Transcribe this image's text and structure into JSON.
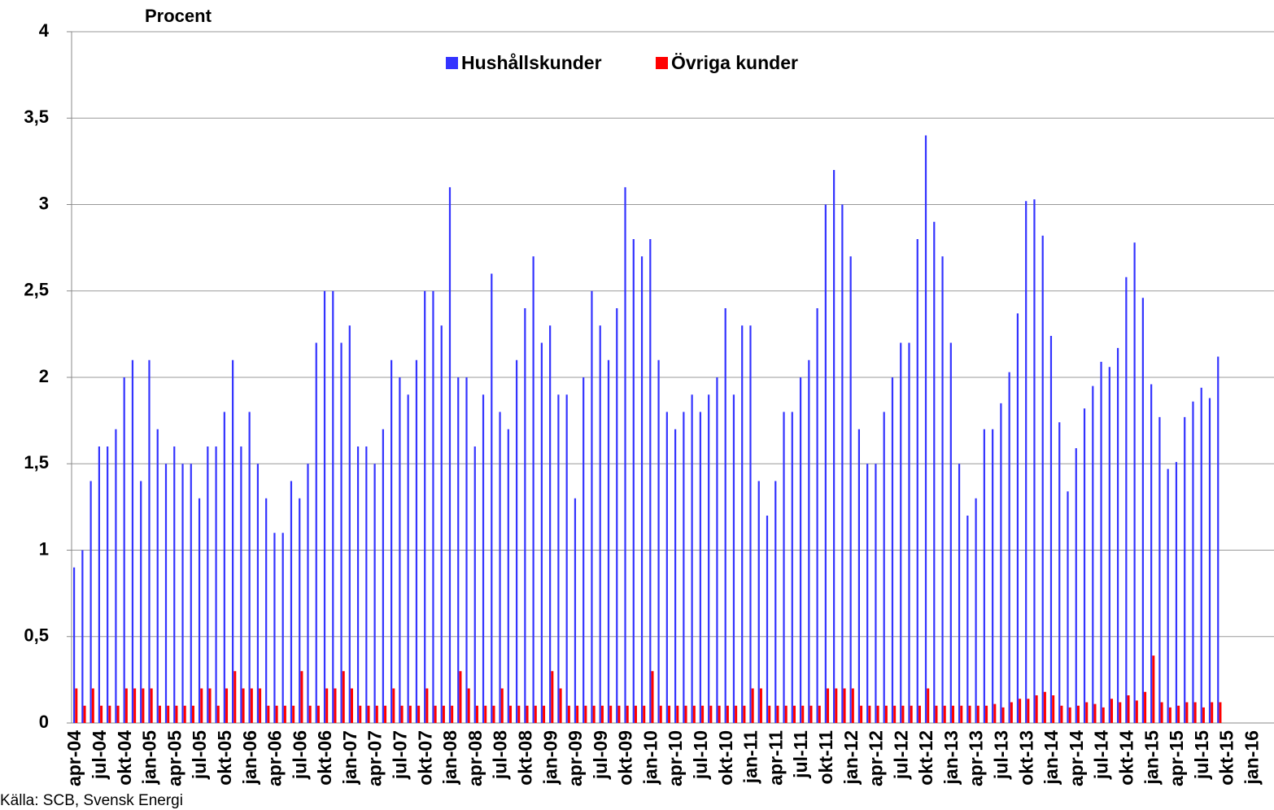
{
  "chart_data": {
    "type": "bar",
    "y_label": "Procent",
    "source": "Källa: SCB, Svensk Energi",
    "categories": [
      "apr-04",
      null,
      null,
      "jul-04",
      null,
      null,
      "okt-04",
      null,
      null,
      "jan-05",
      null,
      null,
      "apr-05",
      null,
      null,
      "jul-05",
      null,
      null,
      "okt-05",
      null,
      null,
      "jan-06",
      null,
      null,
      "apr-06",
      null,
      null,
      "jul-06",
      null,
      null,
      "okt-06",
      null,
      null,
      "jan-07",
      null,
      null,
      "apr-07",
      null,
      null,
      "jul-07",
      null,
      null,
      "okt-07",
      null,
      null,
      "jan-08",
      null,
      null,
      "apr-08",
      null,
      null,
      "jul-08",
      null,
      null,
      "okt-08",
      null,
      null,
      "jan-09",
      null,
      null,
      "apr-09",
      null,
      null,
      "jul-09",
      null,
      null,
      "okt-09",
      null,
      null,
      "jan-10",
      null,
      null,
      "apr-10",
      null,
      null,
      "jul-10",
      null,
      null,
      "okt-10",
      null,
      null,
      "jan-11",
      null,
      null,
      "apr-11",
      null,
      null,
      "jul-11",
      null,
      null,
      "okt-11",
      null,
      null,
      "jan-12",
      null,
      null,
      "apr-12",
      null,
      null,
      "jul-12",
      null,
      null,
      "okt-12",
      null,
      null,
      "jan-13",
      null,
      null,
      "apr-13",
      null,
      null,
      "jul-13",
      null,
      null,
      "okt-13",
      null,
      null,
      "jan-14",
      null,
      null,
      "apr-14",
      null,
      null,
      "jul-14",
      null,
      null,
      "okt-14",
      null,
      null,
      "jan-15",
      null,
      null,
      "apr-15",
      null,
      null,
      "jul-15",
      null,
      null,
      "okt-15",
      null,
      null,
      "jan-16",
      null,
      null
    ],
    "series": [
      {
        "name": "Hushållskunder",
        "color": "#3333ff",
        "values": [
          0.9,
          1.0,
          1.4,
          1.6,
          1.6,
          1.7,
          2.0,
          2.1,
          1.4,
          2.1,
          1.7,
          1.5,
          1.6,
          1.5,
          1.5,
          1.3,
          1.6,
          1.6,
          1.8,
          2.1,
          1.6,
          1.8,
          1.5,
          1.3,
          1.1,
          1.1,
          1.4,
          1.3,
          1.5,
          2.2,
          2.5,
          2.5,
          2.2,
          2.3,
          1.6,
          1.6,
          1.5,
          1.7,
          2.1,
          2.0,
          1.9,
          2.1,
          2.5,
          2.5,
          2.3,
          3.1,
          2.0,
          2.0,
          1.6,
          1.9,
          2.6,
          1.8,
          1.7,
          2.1,
          2.4,
          2.7,
          2.2,
          2.3,
          1.9,
          1.9,
          1.3,
          2.0,
          2.5,
          2.3,
          2.1,
          2.4,
          3.1,
          2.8,
          2.7,
          2.8,
          2.1,
          1.8,
          1.7,
          1.8,
          1.9,
          1.8,
          1.9,
          2.0,
          2.4,
          1.9,
          2.3,
          2.3,
          1.4,
          1.2,
          1.4,
          1.8,
          1.8,
          2.0,
          2.1,
          2.4,
          3.0,
          3.2,
          3.0,
          2.7,
          1.7,
          1.5,
          1.5,
          1.8,
          2.0,
          2.2,
          2.2,
          2.8,
          3.4,
          2.9,
          2.7,
          2.2,
          1.5,
          1.2,
          1.3,
          1.7,
          1.7,
          1.85,
          2.03,
          2.37,
          3.02,
          3.03,
          2.82,
          2.24,
          1.74,
          1.34,
          1.59,
          1.82,
          1.95,
          2.09,
          2.06,
          2.17,
          2.58,
          2.78,
          2.46,
          1.96,
          1.77,
          1.47,
          1.51,
          1.77,
          1.86,
          1.94,
          1.88,
          2.12,
          null,
          null,
          null,
          null,
          null,
          null
        ]
      },
      {
        "name": "Övriga kunder",
        "color": "#ff0000",
        "values": [
          0.2,
          0.1,
          0.2,
          0.1,
          0.1,
          0.1,
          0.2,
          0.2,
          0.2,
          0.2,
          0.1,
          0.1,
          0.1,
          0.1,
          0.1,
          0.2,
          0.2,
          0.1,
          0.2,
          0.3,
          0.2,
          0.2,
          0.2,
          0.1,
          0.1,
          0.1,
          0.1,
          0.3,
          0.1,
          0.1,
          0.2,
          0.2,
          0.3,
          0.2,
          0.1,
          0.1,
          0.1,
          0.1,
          0.2,
          0.1,
          0.1,
          0.1,
          0.2,
          0.1,
          0.1,
          0.1,
          0.3,
          0.2,
          0.1,
          0.1,
          0.1,
          0.2,
          0.1,
          0.1,
          0.1,
          0.1,
          0.1,
          0.3,
          0.2,
          0.1,
          0.1,
          0.1,
          0.1,
          0.1,
          0.1,
          0.1,
          0.1,
          0.1,
          0.1,
          0.3,
          0.1,
          0.1,
          0.1,
          0.1,
          0.1,
          0.1,
          0.1,
          0.1,
          0.1,
          0.1,
          0.1,
          0.2,
          0.2,
          0.1,
          0.1,
          0.1,
          0.1,
          0.1,
          0.1,
          0.1,
          0.2,
          0.2,
          0.2,
          0.2,
          0.1,
          0.1,
          0.1,
          0.1,
          0.1,
          0.1,
          0.1,
          0.1,
          0.2,
          0.1,
          0.1,
          0.1,
          0.1,
          0.1,
          0.1,
          0.1,
          0.11,
          0.09,
          0.12,
          0.14,
          0.14,
          0.16,
          0.18,
          0.16,
          0.1,
          0.09,
          0.1,
          0.12,
          0.11,
          0.09,
          0.14,
          0.12,
          0.16,
          0.13,
          0.18,
          0.39,
          0.12,
          0.09,
          0.1,
          0.12,
          0.12,
          0.09,
          0.12,
          0.12,
          null,
          null,
          null,
          null,
          null,
          null
        ]
      }
    ],
    "ylim": [
      0,
      4
    ],
    "yticks": [
      0,
      {
        "value": 0.5,
        "label": "0,5"
      },
      1,
      {
        "value": 1.5,
        "label": "1,5"
      },
      2,
      {
        "value": 2.5,
        "label": "2,5"
      },
      3,
      {
        "value": 3.5,
        "label": "3,5"
      },
      4
    ],
    "grid": true,
    "legend": "top"
  }
}
